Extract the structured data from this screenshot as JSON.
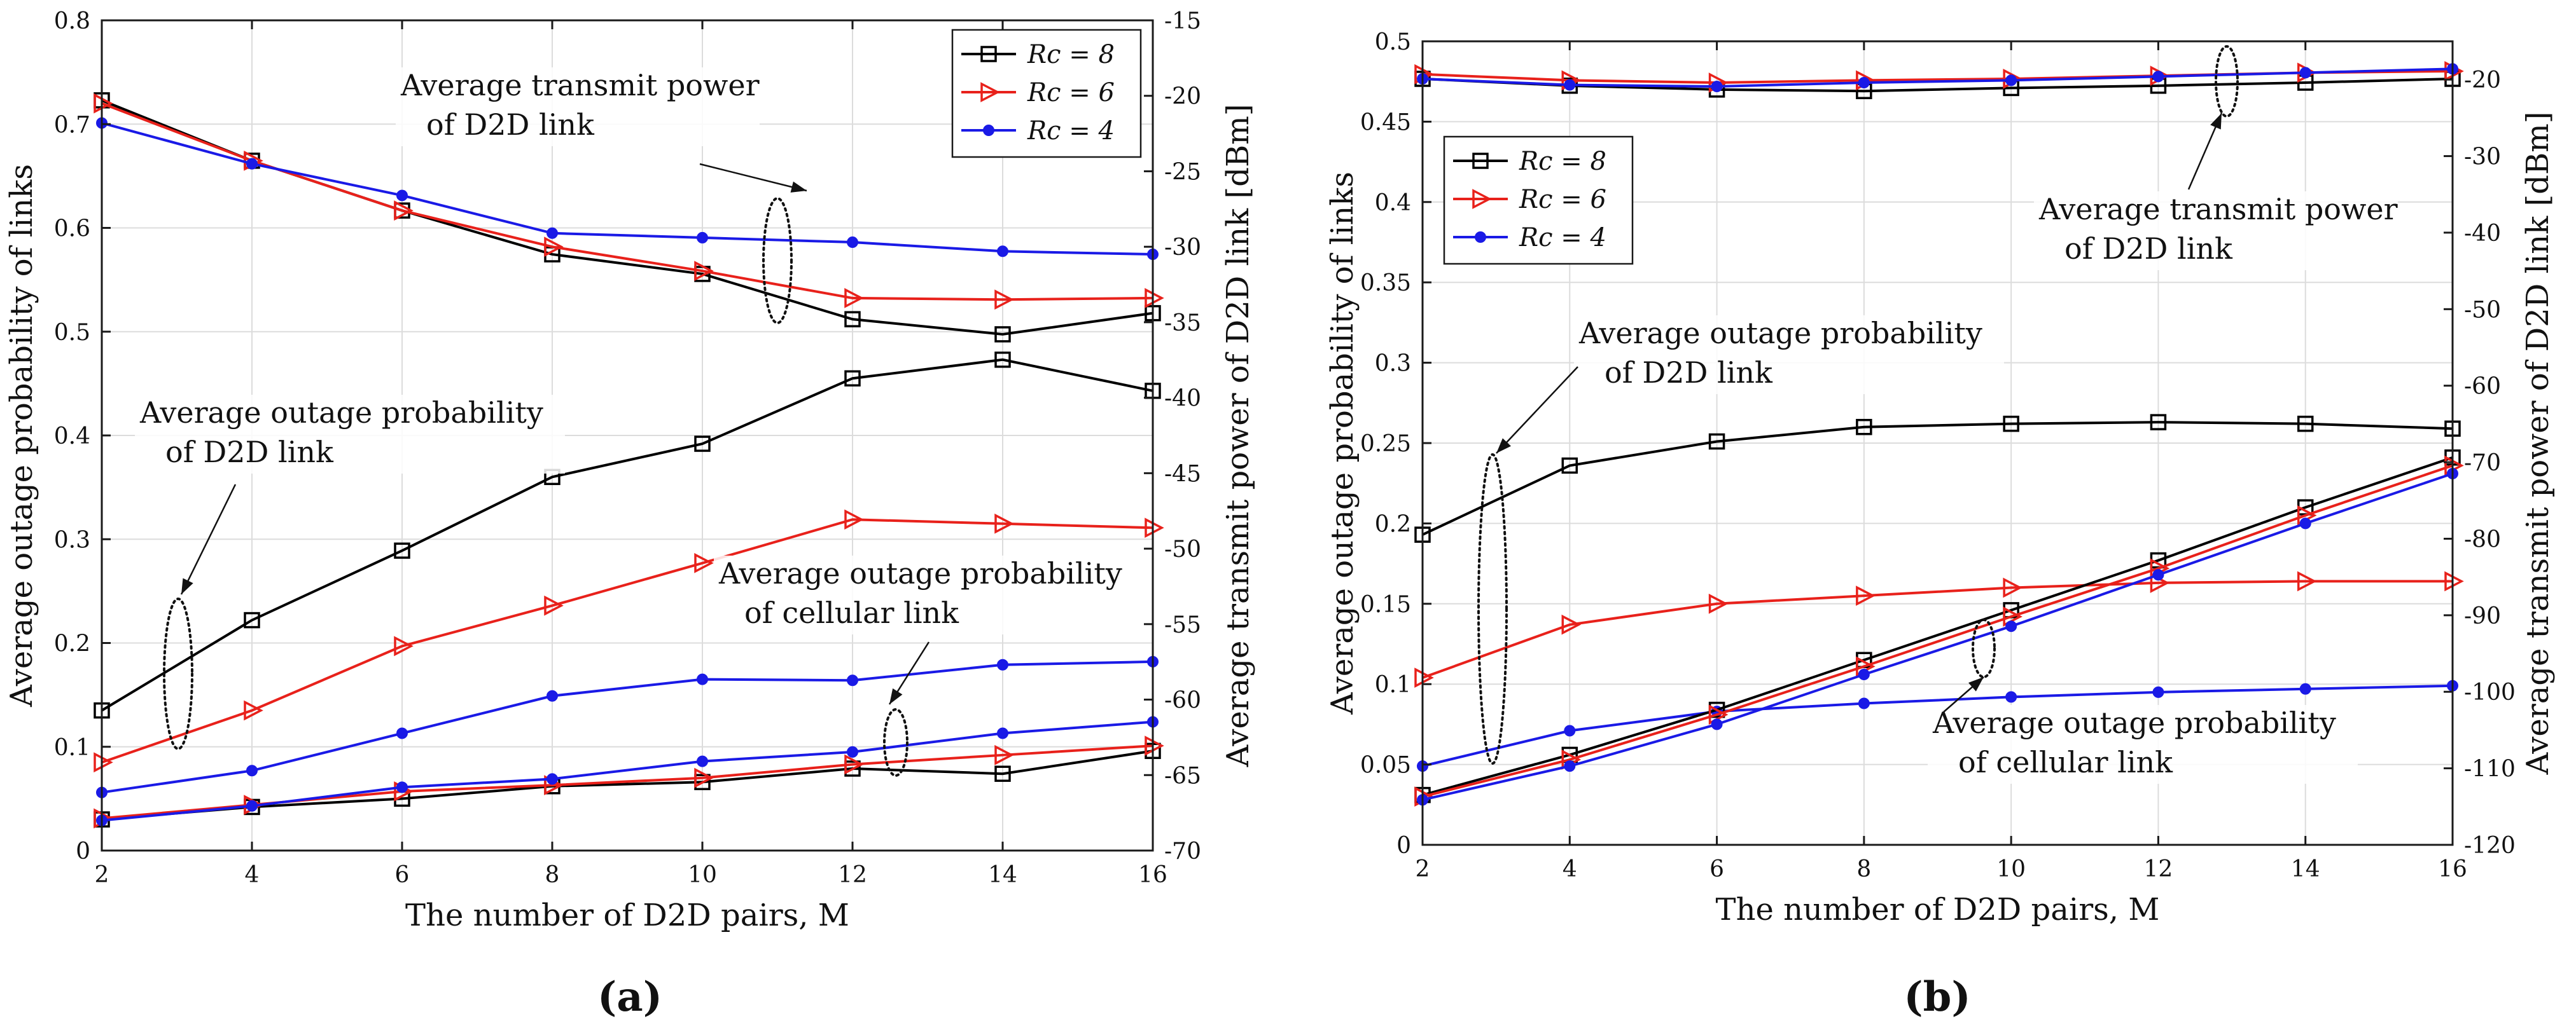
{
  "figure": {
    "panels": [
      {
        "id": "a",
        "label": "(a)",
        "xlabel": "The number of D2D pairs,  M",
        "ylabel": "Average outage probability of links",
        "y2label": "Average transmit power of D2D link [dBm]",
        "annotations": [
          {
            "text": "Average transmit power",
            "text2": "of D2D link"
          },
          {
            "text": "Average outage probability",
            "text2": "of D2D link"
          },
          {
            "text": "Average outage probability",
            "text2": "of cellular link"
          }
        ]
      },
      {
        "id": "b",
        "label": "(b)",
        "xlabel": "The number of D2D pairs,  M",
        "ylabel": "Average outage probability of links",
        "y2label": "Average transmit power of D2D link [dBm]",
        "annotations": [
          {
            "text": "Average transmit power",
            "text2": "of D2D link"
          },
          {
            "text": "Average outage probability",
            "text2": "of D2D link"
          },
          {
            "text": "Average outage probability",
            "text2": "of cellular link"
          }
        ]
      }
    ],
    "legend": [
      {
        "label": "Rc = 8",
        "color": "#000000",
        "marker": "square"
      },
      {
        "label": "Rc = 6",
        "color": "#e8211b",
        "marker": "triangle-right"
      },
      {
        "label": "Rc = 4",
        "color": "#1a1ae6",
        "marker": "dot"
      }
    ]
  },
  "chart_data": [
    {
      "type": "line",
      "panel": "a",
      "x": [
        2,
        4,
        6,
        8,
        10,
        12,
        14,
        16
      ],
      "xlim": [
        2,
        16
      ],
      "xticks": [
        2,
        4,
        6,
        8,
        10,
        12,
        14,
        16
      ],
      "ylim": [
        0,
        0.8
      ],
      "yticks": [
        0,
        0.1,
        0.2,
        0.3,
        0.4,
        0.5,
        0.6,
        0.7,
        0.8
      ],
      "y2lim": [
        -70,
        -15
      ],
      "y2ticks": [
        -70,
        -65,
        -60,
        -55,
        -50,
        -45,
        -40,
        -35,
        -30,
        -25,
        -20,
        -15
      ],
      "grid": true,
      "legend_position": "top-right",
      "series": [
        {
          "name": "Rc = 8",
          "group": "power",
          "axis": "right",
          "values": [
            -20.3,
            -24.3,
            -27.6,
            -30.5,
            -31.8,
            -34.8,
            -35.8,
            -34.4
          ]
        },
        {
          "name": "Rc = 6",
          "group": "power",
          "axis": "right",
          "values": [
            -20.5,
            -24.3,
            -27.6,
            -30.0,
            -31.6,
            -33.4,
            -33.5,
            -33.4
          ]
        },
        {
          "name": "Rc = 4",
          "group": "power",
          "axis": "right",
          "values": [
            -21.8,
            -24.5,
            -26.6,
            -29.1,
            -29.4,
            -29.7,
            -30.3,
            -30.5
          ]
        },
        {
          "name": "Rc = 8",
          "group": "d2d_outage",
          "axis": "left",
          "values": [
            0.135,
            0.222,
            0.289,
            0.36,
            0.392,
            0.455,
            0.473,
            0.443
          ]
        },
        {
          "name": "Rc = 6",
          "group": "d2d_outage",
          "axis": "left",
          "values": [
            0.085,
            0.135,
            0.197,
            0.236,
            0.277,
            0.319,
            0.315,
            0.311
          ]
        },
        {
          "name": "Rc = 4",
          "group": "d2d_outage",
          "axis": "left",
          "values": [
            0.056,
            0.077,
            0.113,
            0.149,
            0.165,
            0.164,
            0.179,
            0.182
          ]
        },
        {
          "name": "Rc = 8",
          "group": "cell_outage",
          "axis": "left",
          "values": [
            0.03,
            0.042,
            0.05,
            0.062,
            0.066,
            0.079,
            0.074,
            0.096
          ]
        },
        {
          "name": "Rc = 6",
          "group": "cell_outage",
          "axis": "left",
          "values": [
            0.031,
            0.044,
            0.057,
            0.063,
            0.07,
            0.083,
            0.092,
            0.101
          ]
        },
        {
          "name": "Rc = 4",
          "group": "cell_outage",
          "axis": "left",
          "values": [
            0.029,
            0.043,
            0.061,
            0.069,
            0.086,
            0.095,
            0.113,
            0.124
          ]
        }
      ]
    },
    {
      "type": "line",
      "panel": "b",
      "x": [
        2,
        4,
        6,
        8,
        10,
        12,
        14,
        16
      ],
      "xlim": [
        2,
        16
      ],
      "xticks": [
        2,
        4,
        6,
        8,
        10,
        12,
        14,
        16
      ],
      "ylim": [
        0,
        0.5
      ],
      "yticks": [
        0,
        0.05,
        0.1,
        0.15,
        0.2,
        0.25,
        0.3,
        0.35,
        0.4,
        0.45,
        0.5
      ],
      "y2lim": [
        -120,
        -15
      ],
      "y2ticks": [
        -120,
        -110,
        -100,
        -90,
        -80,
        -70,
        -60,
        -50,
        -40,
        -30,
        -20
      ],
      "grid": true,
      "legend_position": "top-left",
      "series": [
        {
          "name": "Rc = 8",
          "group": "power",
          "axis": "right",
          "values": [
            -19.9,
            -20.8,
            -21.3,
            -21.5,
            -21.1,
            -20.8,
            -20.4,
            -19.9
          ]
        },
        {
          "name": "Rc = 6",
          "group": "power",
          "axis": "right",
          "values": [
            -19.3,
            -20.1,
            -20.4,
            -20.1,
            -19.9,
            -19.5,
            -19.1,
            -18.9
          ]
        },
        {
          "name": "Rc = 4",
          "group": "power",
          "axis": "right",
          "values": [
            -19.9,
            -20.7,
            -20.9,
            -20.4,
            -20.1,
            -19.6,
            -19.1,
            -18.6
          ]
        },
        {
          "name": "Rc = 8",
          "group": "d2d_outage",
          "axis": "left",
          "values": [
            0.193,
            0.236,
            0.251,
            0.26,
            0.262,
            0.263,
            0.262,
            0.259
          ]
        },
        {
          "name": "Rc = 6",
          "group": "d2d_outage",
          "axis": "left",
          "values": [
            0.104,
            0.137,
            0.15,
            0.155,
            0.16,
            0.163,
            0.164,
            0.164
          ]
        },
        {
          "name": "Rc = 4",
          "group": "d2d_outage",
          "axis": "left",
          "values": [
            0.049,
            0.071,
            0.083,
            0.088,
            0.092,
            0.095,
            0.097,
            0.099
          ]
        },
        {
          "name": "Rc = 8",
          "group": "cell_outage",
          "axis": "left",
          "values": [
            0.031,
            0.056,
            0.084,
            0.115,
            0.146,
            0.177,
            0.21,
            0.241
          ]
        },
        {
          "name": "Rc = 6",
          "group": "cell_outage",
          "axis": "left",
          "values": [
            0.03,
            0.053,
            0.081,
            0.111,
            0.142,
            0.172,
            0.205,
            0.236
          ]
        },
        {
          "name": "Rc = 4",
          "group": "cell_outage",
          "axis": "left",
          "values": [
            0.028,
            0.049,
            0.075,
            0.106,
            0.136,
            0.168,
            0.2,
            0.231
          ]
        }
      ]
    }
  ]
}
